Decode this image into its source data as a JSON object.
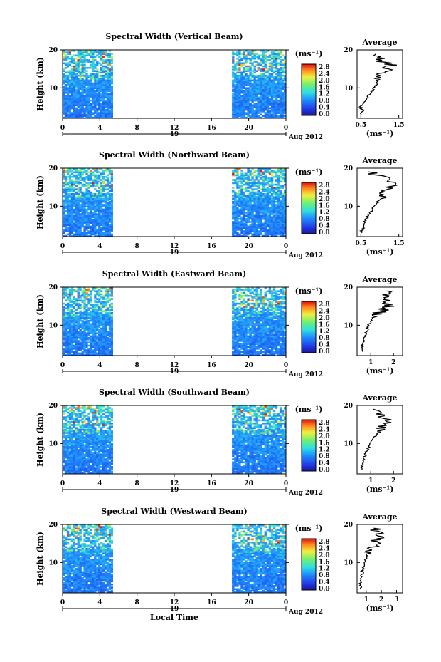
{
  "chart_data": [
    {
      "type": "heatmap",
      "title": "Spectral Width (Vertical Beam)",
      "ylabel": "Height (km)",
      "units": "(ms⁻¹)",
      "x_ticks": [
        "0",
        "4",
        "8",
        "12",
        "16",
        "20",
        "0"
      ],
      "y_ticks": [
        "20",
        "10"
      ],
      "date_day": "19",
      "date_label": "Aug 2012",
      "xlim": [
        0,
        24
      ],
      "ylim": [
        2,
        20
      ],
      "data_segments": [
        [
          0,
          5.4
        ],
        [
          18.2,
          24
        ]
      ],
      "colorbar_ticks": [
        "2.8",
        "2.4",
        "2.0",
        "1.6",
        "1.2",
        "0.8",
        "0.4",
        "0.0"
      ],
      "average": {
        "title": "Average",
        "xlabel": "(ms⁻¹)",
        "x_ticks": [
          "0.5",
          "1.5"
        ],
        "xlim": [
          0.4,
          1.6
        ],
        "y_ticks": [
          "20",
          "10"
        ],
        "heights": [
          3,
          4,
          5,
          6,
          7,
          8,
          9,
          10,
          11,
          12,
          13,
          14,
          15,
          16,
          17,
          18,
          19
        ],
        "values": [
          0.5,
          0.55,
          0.5,
          0.58,
          0.62,
          0.7,
          0.8,
          0.85,
          0.9,
          0.95,
          1.0,
          1.05,
          1.2,
          1.3,
          1.05,
          0.95,
          0.9
        ]
      }
    },
    {
      "type": "heatmap",
      "title": "Spectral Width (Northward Beam)",
      "ylabel": "Height (km)",
      "units": "(ms⁻¹)",
      "x_ticks": [
        "0",
        "4",
        "8",
        "12",
        "16",
        "20",
        "0"
      ],
      "y_ticks": [
        "20",
        "10"
      ],
      "date_day": "19",
      "date_label": "Aug 2012",
      "xlim": [
        0,
        24
      ],
      "ylim": [
        2,
        20
      ],
      "data_segments": [
        [
          0,
          5.4
        ],
        [
          18.2,
          24
        ]
      ],
      "colorbar_ticks": [
        "2.8",
        "2.4",
        "2.0",
        "1.6",
        "1.2",
        "0.8",
        "0.4",
        "0.0"
      ],
      "average": {
        "title": "Average",
        "xlabel": "(ms⁻¹)",
        "x_ticks": [
          "0.5",
          "1.5"
        ],
        "xlim": [
          0.4,
          1.6
        ],
        "y_ticks": [
          "20",
          "10"
        ],
        "heights": [
          3,
          4,
          5,
          6,
          7,
          8,
          9,
          10,
          11,
          12,
          13,
          14,
          15,
          16,
          17,
          18,
          19
        ],
        "values": [
          0.5,
          0.55,
          0.55,
          0.6,
          0.65,
          0.72,
          0.8,
          0.85,
          0.95,
          1.0,
          1.05,
          1.15,
          1.25,
          1.4,
          1.3,
          1.0,
          0.7
        ]
      }
    },
    {
      "type": "heatmap",
      "title": "Spectral Width (Eastward Beam)",
      "ylabel": "Height (km)",
      "units": "(ms⁻¹)",
      "x_ticks": [
        "0",
        "4",
        "8",
        "12",
        "16",
        "20",
        "0"
      ],
      "y_ticks": [
        "20",
        "10"
      ],
      "date_day": "19",
      "date_label": "Aug 2012",
      "xlim": [
        0,
        24
      ],
      "ylim": [
        2,
        20
      ],
      "data_segments": [
        [
          0,
          5.4
        ],
        [
          18.2,
          24
        ]
      ],
      "colorbar_ticks": [
        "2.8",
        "2.4",
        "2.0",
        "1.6",
        "1.2",
        "0.8",
        "0.4",
        "0.0"
      ],
      "average": {
        "title": "Average",
        "xlabel": "(ms⁻¹)",
        "x_ticks": [
          "1",
          "2"
        ],
        "xlim": [
          0.4,
          2.4
        ],
        "y_ticks": [
          "20",
          "10"
        ],
        "heights": [
          3,
          4,
          5,
          6,
          7,
          8,
          9,
          10,
          11,
          12,
          13,
          14,
          15,
          16,
          17,
          18,
          19
        ],
        "values": [
          0.6,
          0.6,
          0.65,
          0.7,
          0.75,
          0.8,
          0.85,
          0.9,
          1.0,
          1.1,
          1.3,
          1.5,
          1.8,
          1.6,
          1.9,
          1.6,
          1.7
        ]
      }
    },
    {
      "type": "heatmap",
      "title": "Spectral Width (Southward Beam)",
      "ylabel": "Height (km)",
      "units": "(ms⁻¹)",
      "x_ticks": [
        "0",
        "4",
        "8",
        "12",
        "16",
        "20",
        "0"
      ],
      "y_ticks": [
        "20",
        "10"
      ],
      "date_day": "19",
      "date_label": "Aug 2012",
      "xlim": [
        0,
        24
      ],
      "ylim": [
        2,
        20
      ],
      "data_segments": [
        [
          0,
          5.4
        ],
        [
          18.2,
          24
        ]
      ],
      "colorbar_ticks": [
        "2.8",
        "2.4",
        "2.0",
        "1.6",
        "1.2",
        "0.8",
        "0.4",
        "0.0"
      ],
      "average": {
        "title": "Average",
        "xlabel": "(ms⁻¹)",
        "x_ticks": [
          "1",
          "2"
        ],
        "xlim": [
          0.4,
          2.4
        ],
        "y_ticks": [
          "20",
          "10"
        ],
        "heights": [
          3,
          4,
          5,
          6,
          7,
          8,
          9,
          10,
          11,
          12,
          13,
          14,
          15,
          16,
          17,
          18,
          19
        ],
        "values": [
          0.6,
          0.62,
          0.65,
          0.7,
          0.75,
          0.8,
          0.9,
          1.0,
          1.1,
          1.2,
          1.35,
          1.5,
          1.7,
          1.9,
          1.6,
          1.3,
          1.1
        ]
      }
    },
    {
      "type": "heatmap",
      "title": "Spectral Width (Westward Beam)",
      "ylabel": "Height (km)",
      "units": "(ms⁻¹)",
      "x_ticks": [
        "0",
        "4",
        "8",
        "12",
        "16",
        "20",
        "0"
      ],
      "y_ticks": [
        "20",
        "10"
      ],
      "date_day": "19",
      "date_label": "Aug 2012",
      "xlabel": "Local Time",
      "xlim": [
        0,
        24
      ],
      "ylim": [
        2,
        20
      ],
      "data_segments": [
        [
          0,
          5.4
        ],
        [
          18.2,
          24
        ]
      ],
      "colorbar_ticks": [
        "2.8",
        "2.4",
        "2.0",
        "1.6",
        "1.2",
        "0.8",
        "0.4",
        "0.0"
      ],
      "average": {
        "title": "Average",
        "xlabel": "(ms⁻¹)",
        "x_ticks": [
          "1",
          "2",
          "3"
        ],
        "xlim": [
          0.4,
          3.4
        ],
        "y_ticks": [
          "20",
          "10"
        ],
        "heights": [
          3,
          4,
          5,
          6,
          7,
          8,
          9,
          10,
          11,
          12,
          13,
          14,
          15,
          16,
          17,
          18,
          19
        ],
        "values": [
          0.6,
          0.62,
          0.65,
          0.7,
          0.72,
          0.78,
          0.85,
          0.9,
          1.0,
          1.1,
          1.3,
          1.5,
          1.8,
          1.6,
          2.0,
          1.7,
          1.5
        ]
      }
    }
  ]
}
